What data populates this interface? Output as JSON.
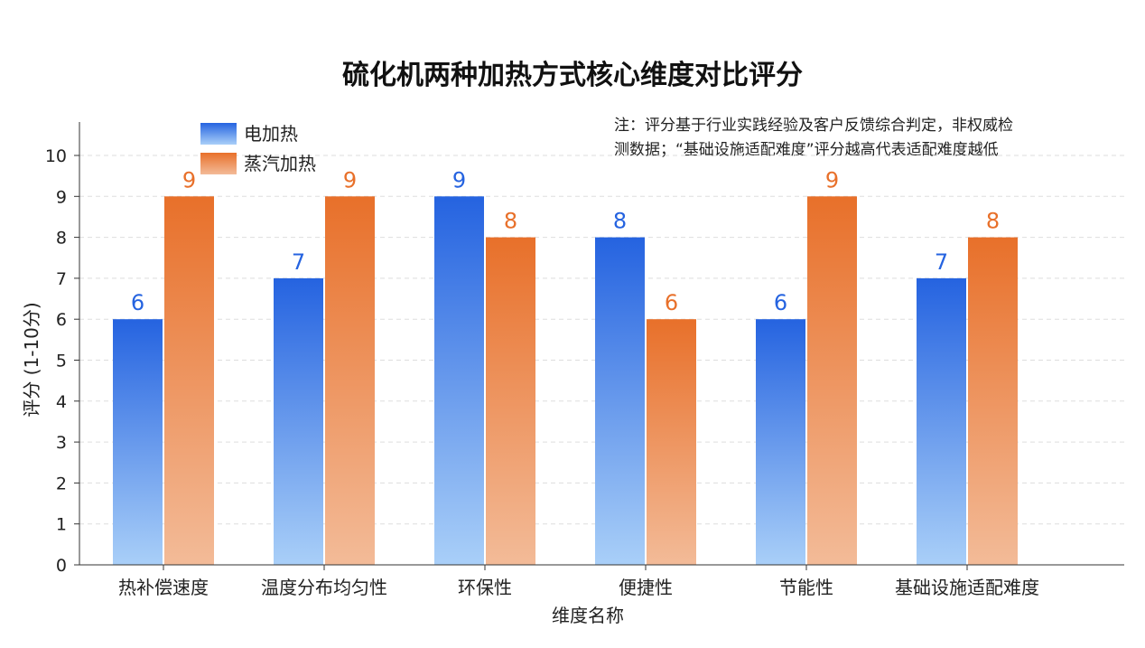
{
  "chart_data": {
    "type": "bar",
    "title": "硫化机两种加热方式核心维度对比评分",
    "xlabel": "维度名称",
    "ylabel": "评分 (1-10分)",
    "ylim": [
      0,
      10.5
    ],
    "yticks": [
      "0",
      "1",
      "2",
      "3",
      "4",
      "5",
      "6",
      "7",
      "8",
      "9",
      "10"
    ],
    "grid": true,
    "legend_position": "top-left",
    "categories": [
      "热补偿速度",
      "温度分布均匀性",
      "环保性",
      "便捷性",
      "节能性",
      "基础设施适配难度"
    ],
    "series": [
      {
        "name": "电加热",
        "values": [
          6,
          7,
          9,
          8,
          6,
          7
        ],
        "labels": [
          "6",
          "7",
          "9",
          "8",
          "6",
          "7"
        ],
        "color": "#2563e0",
        "color_light": "#a9cff8"
      },
      {
        "name": "蒸汽加热",
        "values": [
          9,
          9,
          8,
          6,
          9,
          8
        ],
        "labels": [
          "9",
          "9",
          "8",
          "6",
          "9",
          "8"
        ],
        "color": "#e8702a",
        "color_light": "#f3bb98"
      }
    ],
    "note": [
      "注：评分基于行业实践经验及客户反馈综合判定，非权威检",
      "测数据；“基础设施适配难度”评分越高代表适配难度越低"
    ]
  }
}
